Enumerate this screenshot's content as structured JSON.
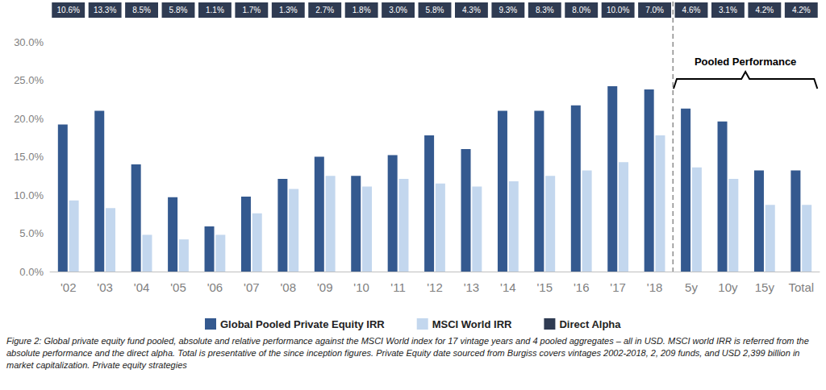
{
  "chart_data": {
    "type": "bar",
    "categories": [
      "'02",
      "'03",
      "'04",
      "'05",
      "'06",
      "'07",
      "'08",
      "'09",
      "'10",
      "'11",
      "'12",
      "'13",
      "'14",
      "'15",
      "'16",
      "'17",
      "'18",
      "5y",
      "10y",
      "15y",
      "Total"
    ],
    "series": [
      {
        "name": "Global Pooled Private Equity IRR",
        "type": "bar",
        "color": "#34598f",
        "values": [
          19.2,
          21.0,
          14.0,
          9.7,
          5.9,
          9.8,
          12.1,
          15.0,
          12.5,
          15.2,
          17.8,
          16.0,
          21.0,
          21.0,
          21.7,
          24.2,
          23.8,
          21.3,
          19.6,
          13.2,
          13.2
        ]
      },
      {
        "name": "MSCI World IRR",
        "type": "bar",
        "color": "#c3d7ee",
        "values": [
          9.3,
          8.3,
          4.8,
          4.2,
          4.8,
          7.6,
          10.8,
          12.5,
          11.1,
          12.1,
          11.5,
          11.1,
          11.8,
          12.5,
          13.2,
          14.3,
          17.8,
          13.6,
          12.1,
          8.7,
          8.7
        ]
      },
      {
        "name": "Direct Alpha",
        "type": "box",
        "color": "#2f3b52",
        "values": [
          10.6,
          13.3,
          8.5,
          5.8,
          1.1,
          1.7,
          1.3,
          2.7,
          1.8,
          3.0,
          5.8,
          4.3,
          9.3,
          8.3,
          8.0,
          10.0,
          7.0,
          4.6,
          3.1,
          4.2,
          4.2
        ],
        "value_labels": [
          "10.6%",
          "13.3%",
          "8.5%",
          "5.8%",
          "1.1%",
          "1.7%",
          "1.3%",
          "2.7%",
          "1.8%",
          "3.0%",
          "5.8%",
          "4.3%",
          "9.3%",
          "8.3%",
          "8.0%",
          "10.0%",
          "7.0%",
          "4.6%",
          "3.1%",
          "4.2%",
          "4.2%"
        ]
      }
    ],
    "ylim": [
      0,
      30
    ],
    "yticks": [
      {
        "value": 0,
        "label": "0.0%"
      },
      {
        "value": 5,
        "label": "5.0%"
      },
      {
        "value": 10,
        "label": "10.0%"
      },
      {
        "value": 15,
        "label": "15.0%"
      },
      {
        "value": 20,
        "label": "20.0%"
      },
      {
        "value": 25,
        "label": "25.0%"
      },
      {
        "value": 30,
        "label": "30.0%"
      }
    ],
    "grid": false,
    "legend": "bottom",
    "annotation": "Pooled Performance",
    "caption": "Figure 2: Global private equity fund pooled, absolute and relative performance against the MSCI World index for 17 vintage years and 4 pooled aggregates – all in USD. MSCI world IRR is referred from the absolute performance and the direct alpha. Total is presentative of the since inception figures. Private Equity date sourced from Burgiss covers vintages 2002-2018, 2, 209 funds, and USD 2,399 billion in market capitalization. Private equity strategies"
  }
}
